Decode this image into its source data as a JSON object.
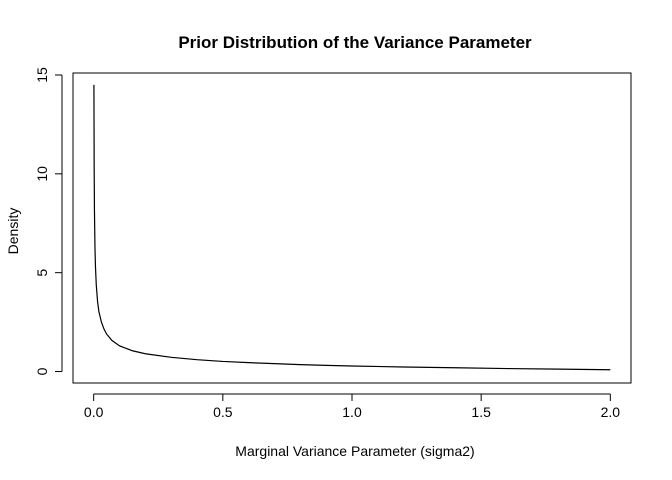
{
  "chart_data": {
    "type": "line",
    "title": "Prior Distribution of the Variance Parameter",
    "xlabel": "Marginal Variance Parameter (sigma2)",
    "ylabel": "Density",
    "xlim": [
      -0.08,
      2.08
    ],
    "ylim": [
      -0.58,
      15.1
    ],
    "xticks": [
      0.0,
      0.5,
      1.0,
      1.5,
      2.0
    ],
    "xtick_labels": [
      "0.0",
      "0.5",
      "1.0",
      "1.5",
      "2.0"
    ],
    "yticks": [
      0,
      5,
      10,
      15
    ],
    "ytick_labels": [
      "0",
      "5",
      "10",
      "15"
    ],
    "grid": false,
    "legend": "none",
    "line_color": "#000000",
    "series": [
      {
        "x": [
          0.001,
          0.002,
          0.003,
          0.005,
          0.007,
          0.01,
          0.015,
          0.02,
          0.03,
          0.04,
          0.05,
          0.07,
          0.1,
          0.15,
          0.2,
          0.3,
          0.4,
          0.5,
          0.6,
          0.7,
          0.8,
          0.9,
          1.0,
          1.2,
          1.4,
          1.6,
          1.8,
          2.0
        ],
        "values": [
          14.5,
          10.2,
          8.2,
          6.3,
          5.3,
          4.4,
          3.55,
          3.05,
          2.5,
          2.15,
          1.9,
          1.58,
          1.3,
          1.05,
          0.9,
          0.72,
          0.6,
          0.51,
          0.45,
          0.4,
          0.35,
          0.31,
          0.28,
          0.23,
          0.19,
          0.15,
          0.12,
          0.09
        ]
      }
    ]
  }
}
